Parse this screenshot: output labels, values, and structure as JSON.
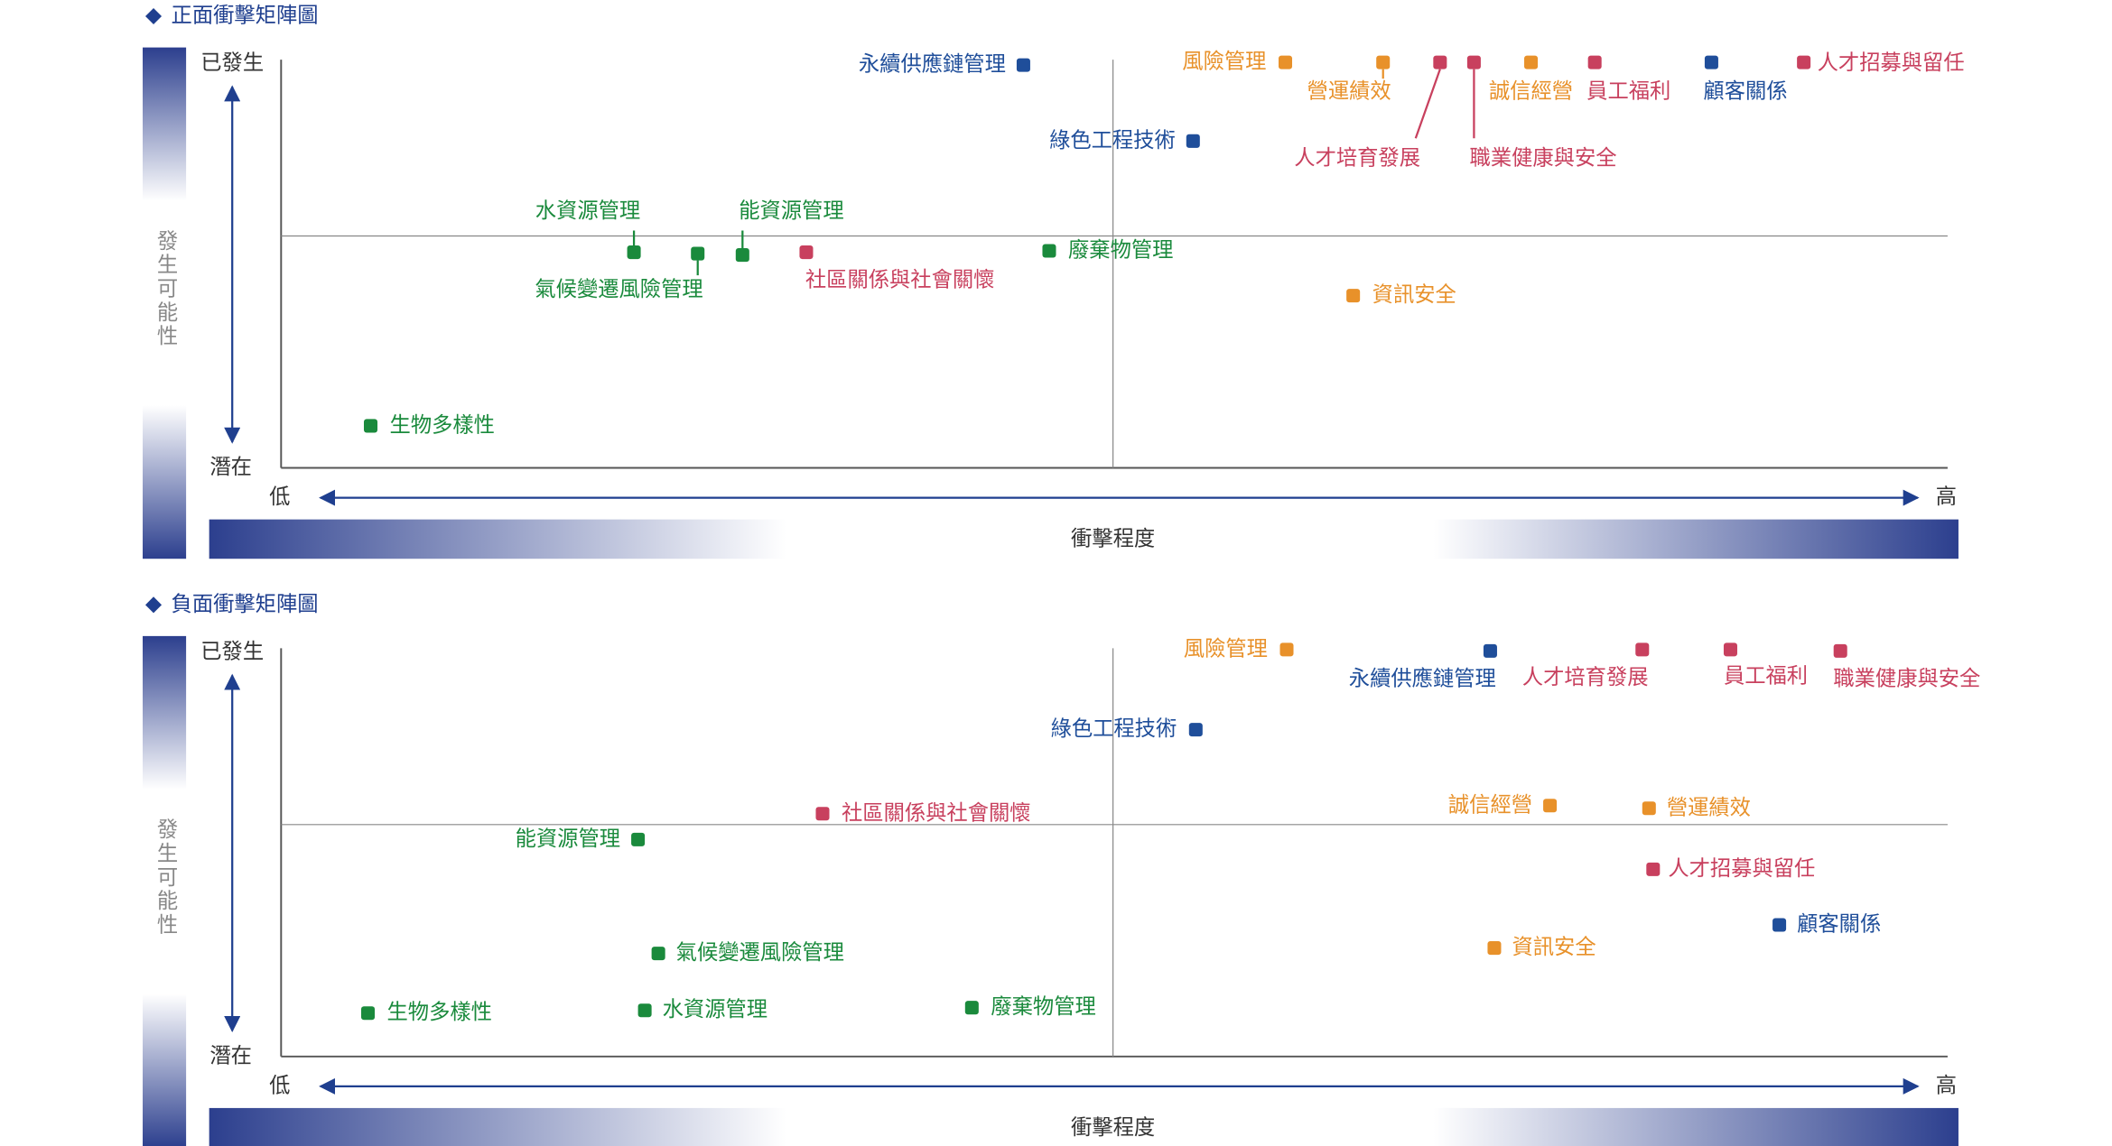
{
  "charts": [
    {
      "title": "正面衝擊矩陣圖",
      "y_axis_label": "發生可能性",
      "y_top": "已發生",
      "y_bottom": "潛在",
      "x_low": "低",
      "x_high": "高",
      "x_axis_label": "衝擊程度",
      "items": [
        {
          "label": "永續供應鏈管理",
          "color": "#1f4e9a"
        },
        {
          "label": "風險管理",
          "color": "#e8912a"
        },
        {
          "label": "營運績效",
          "color": "#e8912a"
        },
        {
          "label": "人才培育發展",
          "color": "#c8405e"
        },
        {
          "label": "職業健康與安全",
          "color": "#c8405e"
        },
        {
          "label": "誠信經營",
          "color": "#e8912a"
        },
        {
          "label": "員工福利",
          "color": "#c8405e"
        },
        {
          "label": "顧客關係",
          "color": "#1f4e9a"
        },
        {
          "label": "人才招募與留任",
          "color": "#c8405e"
        },
        {
          "label": "綠色工程技術",
          "color": "#1f4e9a"
        },
        {
          "label": "水資源管理",
          "color": "#1a8a3c"
        },
        {
          "label": "氣候變遷風險管理",
          "color": "#1a8a3c"
        },
        {
          "label": "能資源管理",
          "color": "#1a8a3c"
        },
        {
          "label": "社區關係與社會關懷",
          "color": "#c8405e"
        },
        {
          "label": "廢棄物管理",
          "color": "#1a8a3c"
        },
        {
          "label": "資訊安全",
          "color": "#e8912a"
        },
        {
          "label": "生物多樣性",
          "color": "#1a8a3c"
        }
      ]
    },
    {
      "title": "負面衝擊矩陣圖",
      "y_axis_label": "發生可能性",
      "y_top": "已發生",
      "y_bottom": "潛在",
      "x_low": "低",
      "x_high": "高",
      "x_axis_label": "衝擊程度",
      "items": [
        {
          "label": "風險管理",
          "color": "#e8912a"
        },
        {
          "label": "永續供應鏈管理",
          "color": "#1f4e9a"
        },
        {
          "label": "人才培育發展",
          "color": "#c8405e"
        },
        {
          "label": "員工福利",
          "color": "#c8405e"
        },
        {
          "label": "職業健康與安全",
          "color": "#c8405e"
        },
        {
          "label": "綠色工程技術",
          "color": "#1f4e9a"
        },
        {
          "label": "誠信經營",
          "color": "#e8912a"
        },
        {
          "label": "營運績效",
          "color": "#e8912a"
        },
        {
          "label": "社區關係與社會關懷",
          "color": "#c8405e"
        },
        {
          "label": "能資源管理",
          "color": "#1a8a3c"
        },
        {
          "label": "人才招募與留任",
          "color": "#c8405e"
        },
        {
          "label": "顧客關係",
          "color": "#1f4e9a"
        },
        {
          "label": "氣候變遷風險管理",
          "color": "#1a8a3c"
        },
        {
          "label": "資訊安全",
          "color": "#e8912a"
        },
        {
          "label": "生物多樣性",
          "color": "#1a8a3c"
        },
        {
          "label": "水資源管理",
          "color": "#1a8a3c"
        },
        {
          "label": "廢棄物管理",
          "color": "#1a8a3c"
        }
      ]
    }
  ]
}
